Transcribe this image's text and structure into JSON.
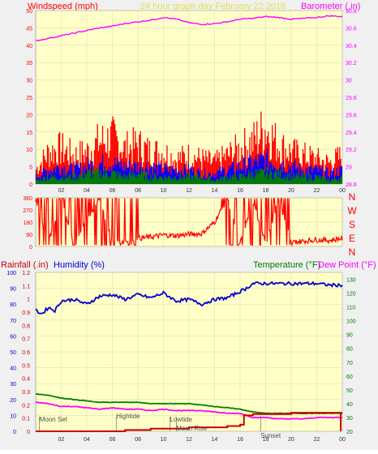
{
  "header": {
    "title": "24 hour graph day   February 22 2016",
    "left_label": "Windspeed (mph)",
    "right_label": "Barometer (.in)"
  },
  "colors": {
    "plot_bg": "#ffffc8",
    "frame": "#f0f0f0",
    "title": "#e5e24a",
    "wind": "#ff0000",
    "wind_mid": "#0000ff",
    "wind_low": "#008000",
    "baro": "#ff00ff",
    "direction": "#ff0000",
    "rain": "#cc0000",
    "humidity": "#0000cc",
    "temperature": "#008000",
    "dewpoint": "#ff00ff",
    "events": "#505050"
  },
  "x_ticks": [
    "02",
    "04",
    "06",
    "08",
    "10",
    "12",
    "14",
    "16",
    "18",
    "20",
    "22",
    "00"
  ],
  "bottom_x_ticks": [
    "02",
    "04",
    "06",
    "08",
    "10",
    "12",
    "14",
    "16",
    "18",
    "20",
    "22",
    "00"
  ],
  "chart_data": [
    {
      "type": "line",
      "name": "windspeed-barometer",
      "x_range_hours": [
        0,
        24
      ],
      "left_axis": {
        "label": "Windspeed (mph)",
        "ylim": [
          0,
          50
        ],
        "ticks": [
          "0",
          "5",
          "10",
          "15",
          "20",
          "25",
          "30",
          "35",
          "40",
          "45",
          "50"
        ]
      },
      "right_axis": {
        "label": "Barometer (.in)",
        "ylim": [
          28.8,
          30.8
        ],
        "ticks": [
          "28.8",
          "29",
          "29.2",
          "29.4",
          "29.6",
          "29.8",
          "30",
          "30.2",
          "30.4",
          "30.6",
          "30.8"
        ]
      },
      "series": [
        {
          "name": "Barometer (.in)",
          "axis": "right",
          "x": [
            0,
            1,
            2,
            3,
            4,
            5,
            6,
            7,
            8,
            9,
            10,
            11,
            12,
            13,
            14,
            15,
            16,
            17,
            18,
            19,
            20,
            21,
            22,
            23,
            24
          ],
          "y": [
            30.45,
            30.48,
            30.51,
            30.54,
            30.57,
            30.6,
            30.62,
            30.65,
            30.67,
            30.69,
            30.72,
            30.7,
            30.66,
            30.64,
            30.65,
            30.67,
            30.7,
            30.71,
            30.73,
            30.72,
            30.7,
            30.71,
            30.72,
            30.74,
            30.73
          ]
        },
        {
          "name": "Wind gust",
          "axis": "left",
          "x": [
            0,
            1,
            2,
            3,
            4,
            5,
            6,
            7,
            8,
            9,
            10,
            11,
            12,
            13,
            14,
            15,
            16,
            17,
            18,
            19,
            20,
            21,
            22,
            23,
            24
          ],
          "y": [
            4,
            9,
            10,
            8,
            9,
            12,
            13,
            10,
            11,
            9,
            9,
            7,
            8,
            7,
            6,
            8,
            10,
            12,
            16,
            11,
            9,
            8,
            7,
            6,
            8
          ]
        },
        {
          "name": "Wind speed",
          "axis": "left",
          "x": [
            0,
            1,
            2,
            3,
            4,
            5,
            6,
            7,
            8,
            9,
            10,
            11,
            12,
            13,
            14,
            15,
            16,
            17,
            18,
            19,
            20,
            21,
            22,
            23,
            24
          ],
          "y": [
            2,
            4,
            5,
            4,
            5,
            6,
            6,
            5,
            5,
            5,
            4,
            4,
            4,
            3,
            3,
            4,
            5,
            6,
            7,
            6,
            5,
            4,
            4,
            3,
            4
          ]
        },
        {
          "name": "Wind low",
          "axis": "left",
          "x": [
            0,
            1,
            2,
            3,
            4,
            5,
            6,
            7,
            8,
            9,
            10,
            11,
            12,
            13,
            14,
            15,
            16,
            17,
            18,
            19,
            20,
            21,
            22,
            23,
            24
          ],
          "y": [
            1,
            2,
            2,
            2,
            3,
            3,
            3,
            2,
            3,
            2,
            2,
            2,
            2,
            2,
            1,
            2,
            2,
            3,
            3,
            3,
            2,
            2,
            2,
            1,
            2
          ]
        }
      ]
    },
    {
      "type": "line",
      "name": "wind-direction",
      "x_range_hours": [
        0,
        24
      ],
      "ylim": [
        0,
        360
      ],
      "ticks": [
        "0",
        "90",
        "180",
        "270",
        "360"
      ],
      "side_labels": [
        "N",
        "W",
        "S",
        "E",
        "N"
      ],
      "series": [
        {
          "name": "Wind direction",
          "x": [
            0,
            1,
            2,
            3,
            4,
            5,
            6,
            7,
            8,
            9,
            10,
            11,
            12,
            13,
            14,
            15,
            16,
            17,
            18,
            19,
            20,
            21,
            22,
            23,
            24
          ],
          "y": [
            340,
            30,
            350,
            20,
            200,
            345,
            40,
            35,
            60,
            70,
            85,
            80,
            90,
            95,
            180,
            355,
            20,
            340,
            15,
            350,
            30,
            40,
            50,
            45,
            60
          ]
        }
      ]
    },
    {
      "type": "line",
      "name": "rain-humidity-temperature",
      "x_range_hours": [
        0,
        24
      ],
      "rain_axis": {
        "label": "Rainfall (.in)",
        "ylim": [
          0,
          1.2
        ],
        "ticks": [
          "0",
          "0.1",
          "0.2",
          "0.3",
          "0.4",
          "0.5",
          "0.6",
          "0.7",
          "0.8",
          "0.9",
          "1",
          "1.1",
          "1.2"
        ]
      },
      "humidity_axis": {
        "label": "Humidity (%)",
        "ylim": [
          0,
          100
        ],
        "ticks": [
          "0",
          "10",
          "20",
          "30",
          "40",
          "50",
          "60",
          "70",
          "80",
          "90",
          "100"
        ]
      },
      "temp_axis": {
        "label": "Temperature (°F)",
        "label2": "Dew Point (°F)",
        "ylim": [
          20,
          135
        ],
        "ticks": [
          "20",
          "30",
          "40",
          "50",
          "60",
          "70",
          "80",
          "90",
          "100",
          "110",
          "120",
          "130"
        ]
      },
      "series": [
        {
          "name": "Humidity (%)",
          "axis": "humidity",
          "x": [
            0,
            0.5,
            1,
            1.5,
            2,
            3,
            4,
            5,
            6,
            7,
            8,
            9,
            10,
            11,
            12,
            13,
            14,
            15,
            16,
            16.5,
            17,
            18,
            19,
            20,
            21,
            22,
            23,
            24
          ],
          "y": [
            76,
            74,
            78,
            76,
            82,
            83,
            80,
            85,
            86,
            83,
            86,
            84,
            87,
            82,
            83,
            80,
            83,
            84,
            88,
            90,
            93,
            93,
            93,
            93,
            93,
            93,
            92,
            92
          ]
        },
        {
          "name": "Temperature (°F)",
          "axis": "temp",
          "x": [
            0,
            1,
            2,
            3,
            4,
            5,
            6,
            7,
            8,
            9,
            10,
            11,
            12,
            13,
            14,
            15,
            16,
            17,
            18,
            19,
            20,
            21,
            22,
            23,
            24
          ],
          "y": [
            47,
            46,
            44,
            43,
            42,
            41,
            41,
            41,
            41,
            40,
            40,
            40,
            40,
            39,
            38,
            37,
            36,
            34,
            33,
            33,
            33,
            33,
            33,
            33,
            33
          ]
        },
        {
          "name": "Dew Point (°F)",
          "axis": "temp",
          "x": [
            0,
            1,
            2,
            3,
            4,
            5,
            6,
            7,
            8,
            9,
            10,
            11,
            12,
            13,
            14,
            15,
            16,
            17,
            18,
            19,
            20,
            21,
            22,
            23,
            24
          ],
          "y": [
            41,
            40,
            38,
            38,
            37,
            36,
            37,
            36,
            36,
            35,
            36,
            35,
            35,
            35,
            34,
            33,
            33,
            30,
            30,
            29,
            29,
            29,
            30,
            30,
            30
          ]
        },
        {
          "name": "Rainfall (.in)",
          "axis": "rain",
          "x": [
            0,
            6,
            7,
            8,
            9,
            10,
            12,
            14,
            15,
            16,
            16.3,
            17,
            18,
            19,
            20,
            21,
            22,
            23,
            24
          ],
          "y": [
            0,
            0,
            0.01,
            0.01,
            0.02,
            0.02,
            0.03,
            0.03,
            0.04,
            0.05,
            0.12,
            0.13,
            0.13,
            0.13,
            0.14,
            0.14,
            0.14,
            0.14,
            0.14
          ]
        }
      ],
      "events": [
        {
          "label": "Moon Set",
          "hour": 0.3
        },
        {
          "label": "Hightide",
          "hour": 6.3
        },
        {
          "label": "Lowtide",
          "hour": 10.5
        },
        {
          "label": "Moon Rise",
          "hour": 11
        },
        {
          "label": "Sunset",
          "hour": 17.6
        }
      ]
    }
  ]
}
